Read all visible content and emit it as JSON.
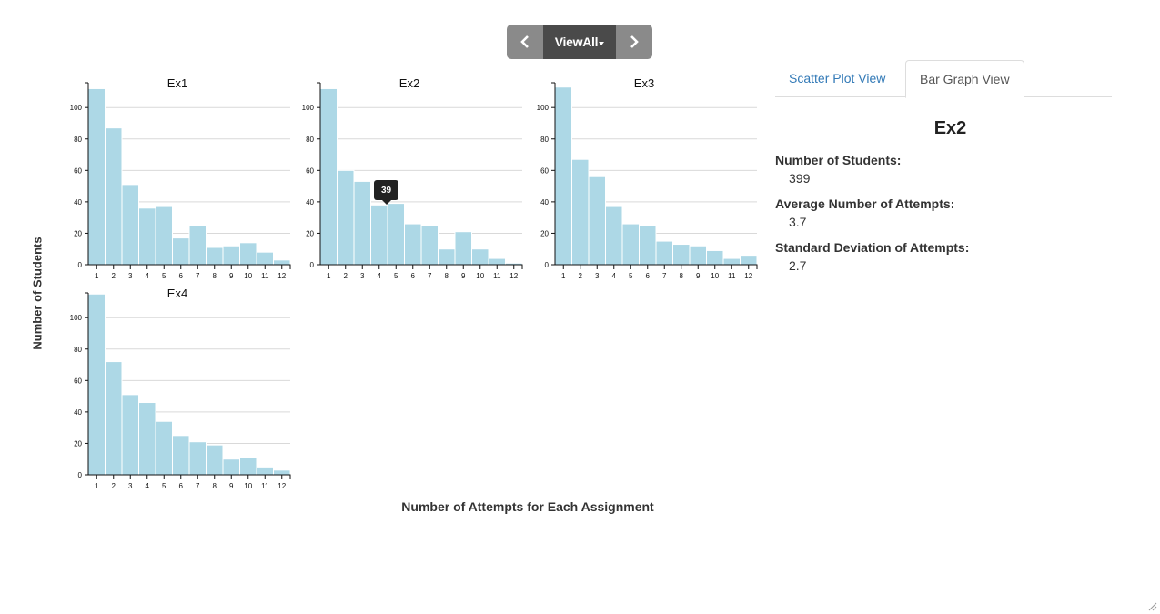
{
  "nav": {
    "prev_icon": "chevron-left-icon",
    "view_label": "ViewAll",
    "next_icon": "chevron-right-icon"
  },
  "axis_labels": {
    "y": "Number of Students",
    "x": "Number of Attempts for Each Assignment"
  },
  "tooltip": {
    "value": "39"
  },
  "tabs": [
    {
      "label": "Scatter Plot View",
      "active": false
    },
    {
      "label": "Bar Graph View",
      "active": true
    }
  ],
  "stats": {
    "title": "Ex2",
    "students_label": "Number of Students:",
    "students_value": "399",
    "avg_label": "Average Number of Attempts:",
    "avg_value": "3.7",
    "sd_label": "Standard Deviation of Attempts:",
    "sd_value": "2.7"
  },
  "colors": {
    "bar": "#add8e6",
    "nav_button": "#8a8a8a",
    "nav_active": "#4a4a4a",
    "link": "#337ab7"
  },
  "chart_data": [
    {
      "type": "bar",
      "title": "Ex1",
      "categories": [
        "1",
        "2",
        "3",
        "4",
        "5",
        "6",
        "7",
        "8",
        "9",
        "10",
        "11",
        "12"
      ],
      "values": [
        112,
        87,
        51,
        36,
        37,
        17,
        25,
        11,
        12,
        14,
        8,
        3
      ],
      "ylim": [
        0,
        114
      ],
      "yticks": [
        0,
        20,
        40,
        60,
        80,
        100
      ],
      "grid": true
    },
    {
      "type": "bar",
      "title": "Ex2",
      "categories": [
        "1",
        "2",
        "3",
        "4",
        "5",
        "6",
        "7",
        "8",
        "9",
        "10",
        "11",
        "12"
      ],
      "values": [
        112,
        60,
        53,
        38,
        39,
        26,
        25,
        10,
        21,
        10,
        4,
        1
      ],
      "ylim": [
        0,
        114
      ],
      "yticks": [
        0,
        20,
        40,
        60,
        80,
        100
      ],
      "grid": true
    },
    {
      "type": "bar",
      "title": "Ex3",
      "categories": [
        "1",
        "2",
        "3",
        "4",
        "5",
        "6",
        "7",
        "8",
        "9",
        "10",
        "11",
        "12"
      ],
      "values": [
        113,
        67,
        56,
        37,
        26,
        25,
        15,
        13,
        12,
        9,
        4,
        6
      ],
      "ylim": [
        0,
        114
      ],
      "yticks": [
        0,
        20,
        40,
        60,
        80,
        100
      ],
      "grid": true
    },
    {
      "type": "bar",
      "title": "Ex4",
      "categories": [
        "1",
        "2",
        "3",
        "4",
        "5",
        "6",
        "7",
        "8",
        "9",
        "10",
        "11",
        "12"
      ],
      "values": [
        115,
        72,
        51,
        46,
        34,
        25,
        21,
        19,
        10,
        11,
        5,
        3
      ],
      "ylim": [
        0,
        114
      ],
      "yticks": [
        0,
        20,
        40,
        60,
        80,
        100
      ],
      "grid": true
    }
  ]
}
